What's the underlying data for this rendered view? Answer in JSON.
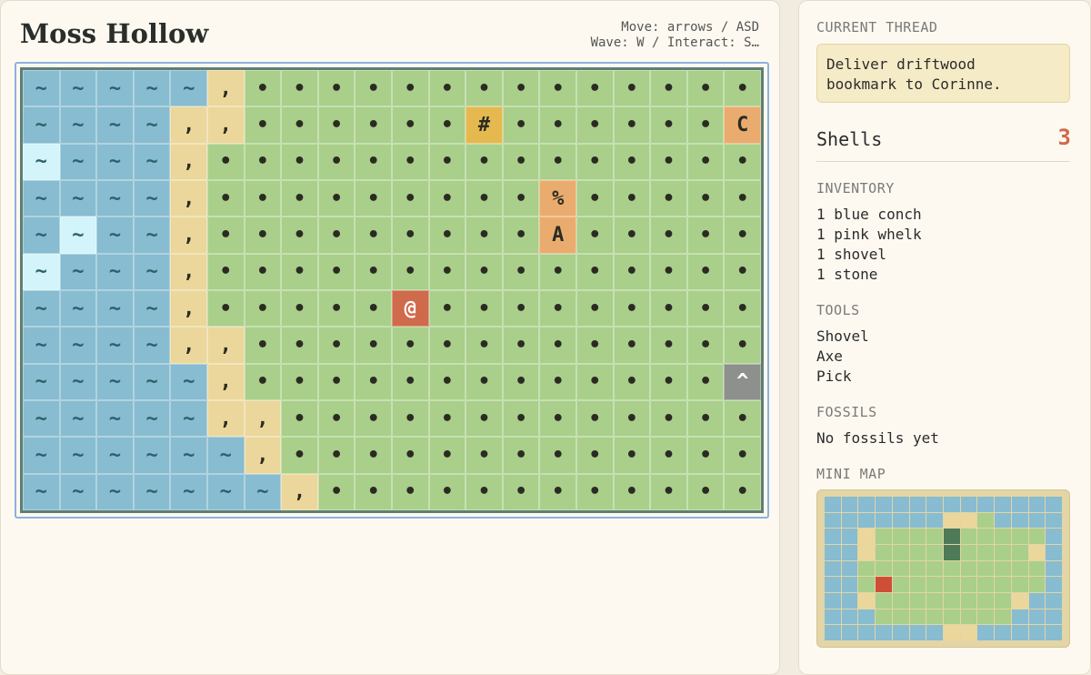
{
  "header": {
    "title": "Moss Hollow",
    "controls": [
      "Move: arrows / ASD",
      "Wave: W / Interact: S…"
    ]
  },
  "map": {
    "tile_colors": {
      "~": "#88bcd0",
      ",": "#ebd79b",
      "•": "#a9cf8a",
      "#": "#e5b94f",
      "C": "#eaac6e",
      "%": "#eaac6e",
      "A": "#eaac6e",
      "@": "#cf6b4a",
      "^": "#8d908c"
    },
    "rows": [
      [
        "~",
        "~",
        "~",
        "~",
        "~",
        ",",
        "•",
        "•",
        "•",
        "•",
        "•",
        "•",
        "•",
        "•",
        "•",
        "•",
        "•",
        "•",
        "•",
        "•"
      ],
      [
        "~",
        "~",
        "~",
        "~",
        ",",
        ",",
        "•",
        "•",
        "•",
        "•",
        "•",
        "•",
        "#",
        "•",
        "•",
        "•",
        "•",
        "•",
        "•",
        "C"
      ],
      [
        "~",
        "~",
        "~",
        "~",
        ",",
        "•",
        "•",
        "•",
        "•",
        "•",
        "•",
        "•",
        "•",
        "•",
        "•",
        "•",
        "•",
        "•",
        "•",
        "•"
      ],
      [
        "~",
        "~",
        "~",
        "~",
        ",",
        "•",
        "•",
        "•",
        "•",
        "•",
        "•",
        "•",
        "•",
        "•",
        "%",
        "•",
        "•",
        "•",
        "•",
        "•"
      ],
      [
        "~",
        "~",
        "~",
        "~",
        ",",
        "•",
        "•",
        "•",
        "•",
        "•",
        "•",
        "•",
        "•",
        "•",
        "A",
        "•",
        "•",
        "•",
        "•",
        "•"
      ],
      [
        "~",
        "~",
        "~",
        "~",
        ",",
        "•",
        "•",
        "•",
        "•",
        "•",
        "•",
        "•",
        "•",
        "•",
        "•",
        "•",
        "•",
        "•",
        "•",
        "•"
      ],
      [
        "~",
        "~",
        "~",
        "~",
        ",",
        "•",
        "•",
        "•",
        "•",
        "•",
        "@",
        "•",
        "•",
        "•",
        "•",
        "•",
        "•",
        "•",
        "•",
        "•"
      ],
      [
        "~",
        "~",
        "~",
        "~",
        ",",
        ",",
        "•",
        "•",
        "•",
        "•",
        "•",
        "•",
        "•",
        "•",
        "•",
        "•",
        "•",
        "•",
        "•",
        "•"
      ],
      [
        "~",
        "~",
        "~",
        "~",
        "~",
        ",",
        "•",
        "•",
        "•",
        "•",
        "•",
        "•",
        "•",
        "•",
        "•",
        "•",
        "•",
        "•",
        "•",
        "^"
      ],
      [
        "~",
        "~",
        "~",
        "~",
        "~",
        ",",
        ",",
        "•",
        "•",
        "•",
        "•",
        "•",
        "•",
        "•",
        "•",
        "•",
        "•",
        "•",
        "•",
        "•"
      ],
      [
        "~",
        "~",
        "~",
        "~",
        "~",
        "~",
        ",",
        "•",
        "•",
        "•",
        "•",
        "•",
        "•",
        "•",
        "•",
        "•",
        "•",
        "•",
        "•",
        "•"
      ],
      [
        "~",
        "~",
        "~",
        "~",
        "~",
        "~",
        "~",
        ",",
        "•",
        "•",
        "•",
        "•",
        "•",
        "•",
        "•",
        "•",
        "•",
        "•",
        "•",
        "•"
      ]
    ]
  },
  "sidebar": {
    "thread_label": "CURRENT THREAD",
    "thread": "Deliver driftwood bookmark to Corinne.",
    "currency_label": "Shells",
    "currency_value": 3,
    "inventory_label": "INVENTORY",
    "inventory": [
      "1 blue conch",
      "1 pink whelk",
      "1 shovel",
      "1 stone"
    ],
    "tools_label": "TOOLS",
    "tools": [
      "Shovel",
      "Axe",
      "Pick"
    ],
    "fossils_label": "FOSSILS",
    "fossils": "No fossils yet",
    "minimap_label": "MINI MAP"
  }
}
